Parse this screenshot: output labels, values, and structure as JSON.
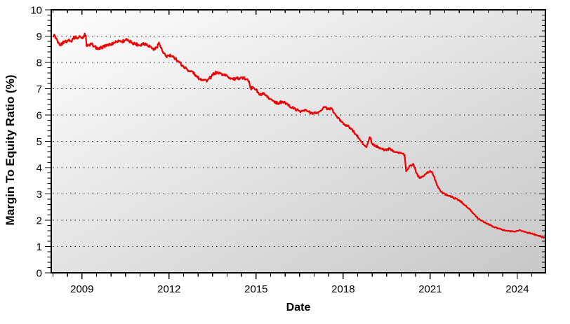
{
  "figure": {
    "background": "#ffffff",
    "plot_gradient_start": "#fefefe",
    "plot_gradient_end": "#c7c7c7",
    "axis_color": "#000000",
    "grid_color": "#000000",
    "line_color": "#ee0000"
  },
  "chart_data": {
    "type": "line",
    "title": "",
    "xlabel": "Date",
    "ylabel": "Margin To Equity Ratio (%)",
    "xlim": [
      2007.94,
      2024.97
    ],
    "ylim": [
      0,
      10
    ],
    "x_major_ticks": [
      2009,
      2012,
      2015,
      2018,
      2021,
      2024
    ],
    "x_tick_labels": [
      "2009",
      "2012",
      "2015",
      "2018",
      "2021",
      "2024"
    ],
    "x_minor_step_years": 0.5,
    "y_major_ticks": [
      0,
      1,
      2,
      3,
      4,
      5,
      6,
      7,
      8,
      9,
      10
    ],
    "y_tick_labels": [
      "0",
      "1",
      "2",
      "3",
      "4",
      "5",
      "6",
      "7",
      "8",
      "9",
      "10"
    ],
    "y_minor_step": 0.2,
    "grid": "horizontal-dotted",
    "legend": "none",
    "series": [
      {
        "name": "Margin To Equity Ratio (%)",
        "color": "#ee0000",
        "points": [
          [
            2008.0,
            9.0
          ],
          [
            2008.04,
            9.06
          ],
          [
            2008.1,
            8.9
          ],
          [
            2008.17,
            8.74
          ],
          [
            2008.25,
            8.68
          ],
          [
            2008.33,
            8.72
          ],
          [
            2008.4,
            8.8
          ],
          [
            2008.48,
            8.78
          ],
          [
            2008.55,
            8.88
          ],
          [
            2008.62,
            8.82
          ],
          [
            2008.7,
            8.9
          ],
          [
            2008.78,
            9.0
          ],
          [
            2008.85,
            8.9
          ],
          [
            2008.93,
            9.0
          ],
          [
            2009.0,
            8.94
          ],
          [
            2009.08,
            9.05
          ],
          [
            2009.13,
            9.02
          ],
          [
            2009.16,
            8.62
          ],
          [
            2009.25,
            8.66
          ],
          [
            2009.33,
            8.7
          ],
          [
            2009.42,
            8.6
          ],
          [
            2009.5,
            8.56
          ],
          [
            2009.58,
            8.5
          ],
          [
            2009.67,
            8.57
          ],
          [
            2009.75,
            8.62
          ],
          [
            2009.88,
            8.66
          ],
          [
            2010.0,
            8.7
          ],
          [
            2010.12,
            8.76
          ],
          [
            2010.25,
            8.84
          ],
          [
            2010.38,
            8.8
          ],
          [
            2010.5,
            8.86
          ],
          [
            2010.6,
            8.82
          ],
          [
            2010.72,
            8.76
          ],
          [
            2010.85,
            8.7
          ],
          [
            2011.0,
            8.66
          ],
          [
            2011.13,
            8.73
          ],
          [
            2011.25,
            8.67
          ],
          [
            2011.37,
            8.6
          ],
          [
            2011.48,
            8.47
          ],
          [
            2011.58,
            8.58
          ],
          [
            2011.65,
            8.76
          ],
          [
            2011.72,
            8.55
          ],
          [
            2011.8,
            8.35
          ],
          [
            2011.9,
            8.22
          ],
          [
            2012.0,
            8.27
          ],
          [
            2012.12,
            8.21
          ],
          [
            2012.22,
            8.16
          ],
          [
            2012.35,
            8.0
          ],
          [
            2012.48,
            7.87
          ],
          [
            2012.6,
            7.76
          ],
          [
            2012.72,
            7.66
          ],
          [
            2012.82,
            7.64
          ],
          [
            2012.92,
            7.47
          ],
          [
            2013.05,
            7.38
          ],
          [
            2013.18,
            7.35
          ],
          [
            2013.32,
            7.31
          ],
          [
            2013.45,
            7.45
          ],
          [
            2013.55,
            7.58
          ],
          [
            2013.65,
            7.62
          ],
          [
            2013.78,
            7.57
          ],
          [
            2013.9,
            7.52
          ],
          [
            2014.02,
            7.47
          ],
          [
            2014.15,
            7.38
          ],
          [
            2014.28,
            7.36
          ],
          [
            2014.4,
            7.4
          ],
          [
            2014.52,
            7.42
          ],
          [
            2014.65,
            7.36
          ],
          [
            2014.76,
            7.28
          ],
          [
            2014.82,
            7.0
          ],
          [
            2014.9,
            7.06
          ],
          [
            2015.0,
            6.96
          ],
          [
            2015.12,
            6.76
          ],
          [
            2015.25,
            6.8
          ],
          [
            2015.38,
            6.68
          ],
          [
            2015.5,
            6.6
          ],
          [
            2015.62,
            6.52
          ],
          [
            2015.75,
            6.44
          ],
          [
            2015.88,
            6.5
          ],
          [
            2016.0,
            6.46
          ],
          [
            2016.12,
            6.36
          ],
          [
            2016.25,
            6.28
          ],
          [
            2016.4,
            6.2
          ],
          [
            2016.55,
            6.14
          ],
          [
            2016.7,
            6.18
          ],
          [
            2016.85,
            6.1
          ],
          [
            2017.0,
            6.07
          ],
          [
            2017.15,
            6.1
          ],
          [
            2017.3,
            6.26
          ],
          [
            2017.38,
            6.3
          ],
          [
            2017.48,
            6.22
          ],
          [
            2017.58,
            6.26
          ],
          [
            2017.7,
            6.06
          ],
          [
            2017.82,
            5.88
          ],
          [
            2017.95,
            5.74
          ],
          [
            2018.08,
            5.62
          ],
          [
            2018.2,
            5.55
          ],
          [
            2018.32,
            5.42
          ],
          [
            2018.45,
            5.25
          ],
          [
            2018.58,
            5.05
          ],
          [
            2018.7,
            4.88
          ],
          [
            2018.8,
            4.77
          ],
          [
            2018.92,
            5.16
          ],
          [
            2019.0,
            4.9
          ],
          [
            2019.1,
            4.82
          ],
          [
            2019.22,
            4.78
          ],
          [
            2019.35,
            4.7
          ],
          [
            2019.48,
            4.67
          ],
          [
            2019.6,
            4.72
          ],
          [
            2019.73,
            4.64
          ],
          [
            2019.85,
            4.6
          ],
          [
            2020.0,
            4.55
          ],
          [
            2020.12,
            4.48
          ],
          [
            2020.17,
            3.86
          ],
          [
            2020.28,
            4.05
          ],
          [
            2020.42,
            4.14
          ],
          [
            2020.52,
            3.8
          ],
          [
            2020.62,
            3.62
          ],
          [
            2020.75,
            3.66
          ],
          [
            2020.88,
            3.8
          ],
          [
            2021.0,
            3.88
          ],
          [
            2021.08,
            3.78
          ],
          [
            2021.18,
            3.52
          ],
          [
            2021.28,
            3.22
          ],
          [
            2021.38,
            3.08
          ],
          [
            2021.5,
            3.0
          ],
          [
            2021.62,
            2.94
          ],
          [
            2021.75,
            2.88
          ],
          [
            2021.88,
            2.82
          ],
          [
            2022.0,
            2.76
          ],
          [
            2022.15,
            2.62
          ],
          [
            2022.3,
            2.47
          ],
          [
            2022.45,
            2.3
          ],
          [
            2022.6,
            2.12
          ],
          [
            2022.75,
            1.98
          ],
          [
            2022.9,
            1.9
          ],
          [
            2023.05,
            1.82
          ],
          [
            2023.2,
            1.74
          ],
          [
            2023.35,
            1.68
          ],
          [
            2023.5,
            1.63
          ],
          [
            2023.65,
            1.6
          ],
          [
            2023.8,
            1.57
          ],
          [
            2023.95,
            1.58
          ],
          [
            2024.1,
            1.62
          ],
          [
            2024.22,
            1.58
          ],
          [
            2024.35,
            1.53
          ],
          [
            2024.5,
            1.49
          ],
          [
            2024.65,
            1.44
          ],
          [
            2024.8,
            1.39
          ],
          [
            2024.97,
            1.32
          ]
        ]
      }
    ]
  }
}
